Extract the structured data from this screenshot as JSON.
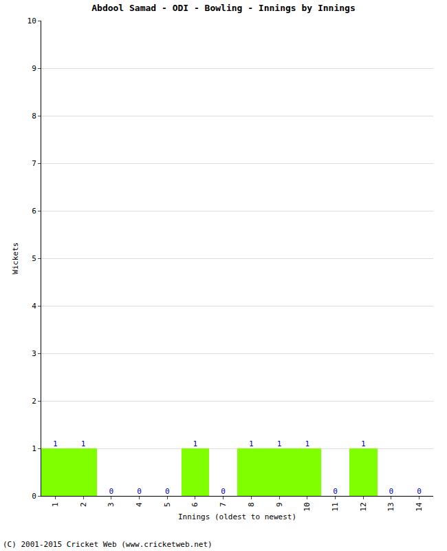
{
  "chart_data": {
    "type": "bar",
    "title": "Abdool Samad - ODI - Bowling - Innings by Innings",
    "x_label": "Innings (oldest to newest)",
    "y_label": "Wickets",
    "categories": [
      "1",
      "2",
      "3",
      "4",
      "5",
      "6",
      "7",
      "8",
      "9",
      "10",
      "11",
      "12",
      "13",
      "14"
    ],
    "values": [
      1,
      1,
      0,
      0,
      0,
      1,
      0,
      1,
      1,
      1,
      0,
      1,
      0,
      0
    ],
    "color": "#80ff00",
    "ylim": [
      0,
      10
    ],
    "yticks": [
      0,
      1,
      2,
      3,
      4,
      5,
      6,
      7,
      8,
      9,
      10
    ],
    "grid": true,
    "data_labels": true,
    "annotations": [
      "(C) 2001-2015 Cricket Web (www.cricketweb.net)"
    ]
  }
}
